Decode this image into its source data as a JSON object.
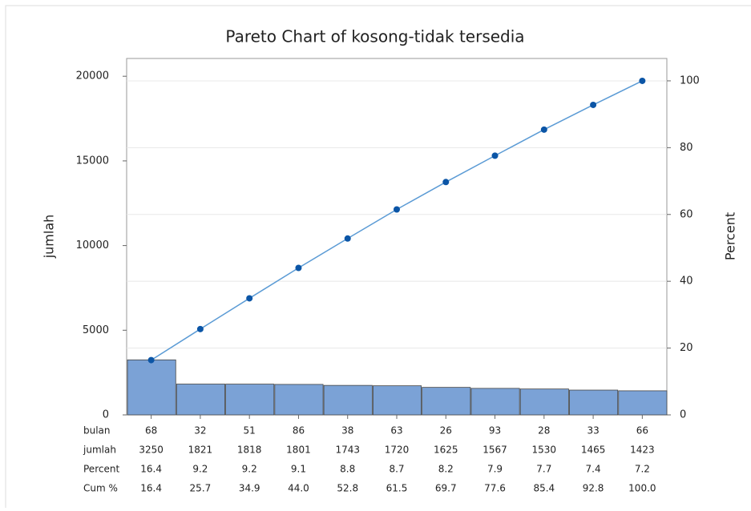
{
  "chart_data": {
    "type": "pareto",
    "title": "Pareto Chart of kosong-tidak tersedia",
    "ylabel": "jumlah",
    "y2label": "Percent",
    "category_label": "bulan",
    "categories": [
      "68",
      "32",
      "51",
      "86",
      "38",
      "63",
      "26",
      "93",
      "28",
      "33",
      "66"
    ],
    "series": [
      {
        "name": "jumlah",
        "color": "#7ba2d6",
        "values": [
          3250,
          1821,
          1818,
          1801,
          1743,
          1720,
          1625,
          1567,
          1530,
          1465,
          1423
        ]
      },
      {
        "name": "Cum %",
        "axis": "y2",
        "color": "#0b55a6",
        "values": [
          16.4,
          25.7,
          34.9,
          44.0,
          52.8,
          61.5,
          69.7,
          77.6,
          85.4,
          92.8,
          100.0
        ],
        "value_labels": [
          "16.4",
          "25.7",
          "34.9",
          "44.0",
          "52.8",
          "61.5",
          "69.7",
          "77.6",
          "85.4",
          "92.8",
          "100.0"
        ]
      }
    ],
    "percent": {
      "name": "Percent",
      "values": [
        16.4,
        9.2,
        9.2,
        9.1,
        8.8,
        8.7,
        8.2,
        7.9,
        7.7,
        7.4,
        7.2
      ]
    },
    "ylim": [
      0,
      21050
    ],
    "yticks": [
      0,
      5000,
      10000,
      15000,
      20000
    ],
    "y2lim": [
      0,
      106.7
    ],
    "y2ticks": [
      0,
      20,
      40,
      60,
      80,
      100
    ],
    "grid": true
  }
}
